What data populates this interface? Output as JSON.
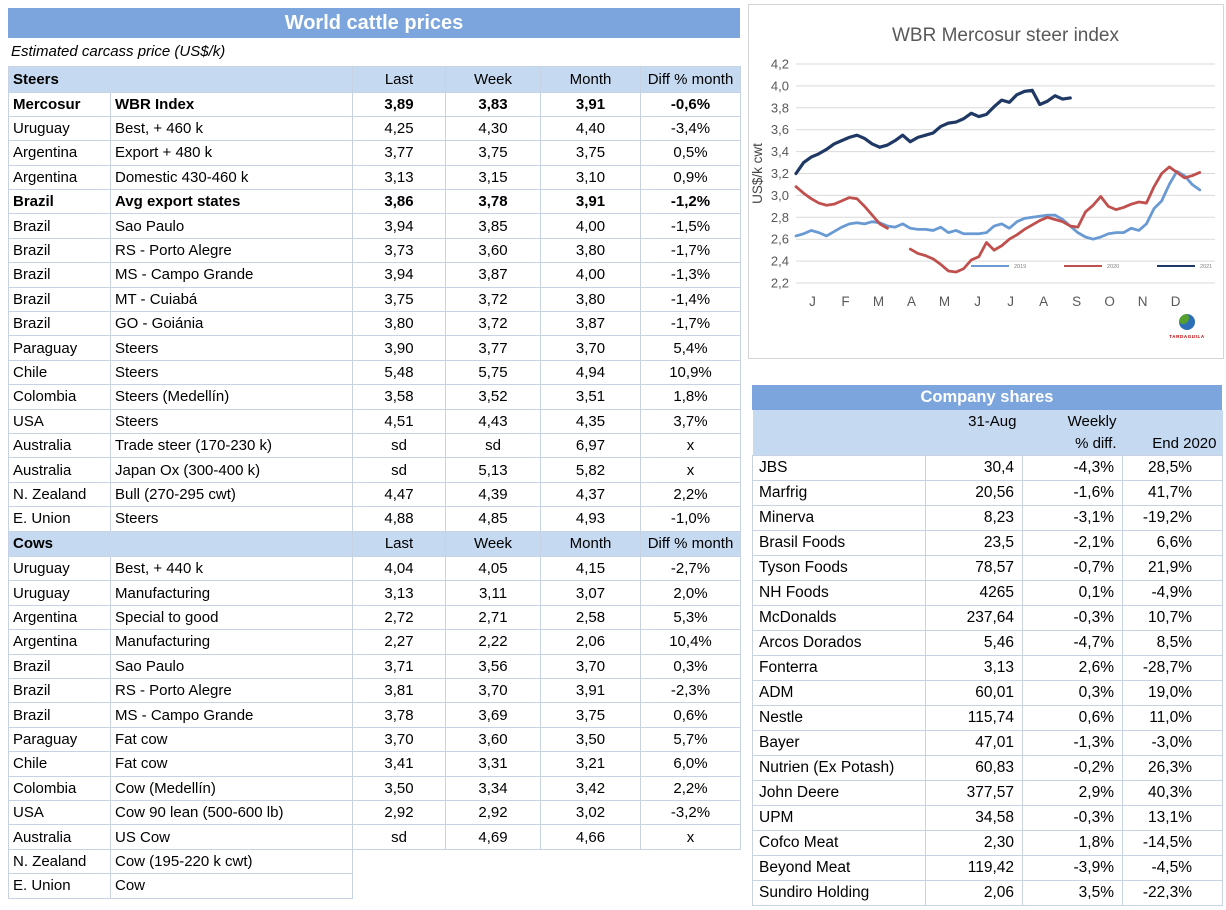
{
  "left_table": {
    "title": "World cattle prices",
    "subtitle": "Estimated carcass price (US$/k)",
    "columns": [
      "Last",
      "Week",
      "Month",
      "Diff % month"
    ],
    "sections": [
      {
        "name": "Steers",
        "rows": [
          {
            "country": "Mercosur",
            "desc": "WBR Index",
            "last": "3,89",
            "week": "3,83",
            "month": "3,91",
            "diff": "-0,6%",
            "bold": true
          },
          {
            "country": "Uruguay",
            "desc": "Best, + 460 k",
            "last": "4,25",
            "week": "4,30",
            "month": "4,40",
            "diff": "-3,4%"
          },
          {
            "country": "Argentina",
            "desc": "Export + 480 k",
            "last": "3,77",
            "week": "3,75",
            "month": "3,75",
            "diff": "0,5%"
          },
          {
            "country": "Argentina",
            "desc": "Domestic 430-460 k",
            "last": "3,13",
            "week": "3,15",
            "month": "3,10",
            "diff": "0,9%"
          },
          {
            "country": "Brazil",
            "desc": "Avg export states",
            "last": "3,86",
            "week": "3,78",
            "month": "3,91",
            "diff": "-1,2%",
            "bold": true
          },
          {
            "country": "Brazil",
            "desc": "Sao Paulo",
            "last": "3,94",
            "week": "3,85",
            "month": "4,00",
            "diff": "-1,5%"
          },
          {
            "country": "Brazil",
            "desc": "RS - Porto Alegre",
            "last": "3,73",
            "week": "3,60",
            "month": "3,80",
            "diff": "-1,7%"
          },
          {
            "country": "Brazil",
            "desc": "MS - Campo Grande",
            "last": "3,94",
            "week": "3,87",
            "month": "4,00",
            "diff": "-1,3%"
          },
          {
            "country": "Brazil",
            "desc": "MT - Cuiabá",
            "last": "3,75",
            "week": "3,72",
            "month": "3,80",
            "diff": "-1,4%"
          },
          {
            "country": "Brazil",
            "desc": "GO - Goiánia",
            "last": "3,80",
            "week": "3,72",
            "month": "3,87",
            "diff": "-1,7%"
          },
          {
            "country": "Paraguay",
            "desc": "Steers",
            "last": "3,90",
            "week": "3,77",
            "month": "3,70",
            "diff": "5,4%"
          },
          {
            "country": "Chile",
            "desc": "Steers",
            "last": "5,48",
            "week": "5,75",
            "month": "4,94",
            "diff": "10,9%"
          },
          {
            "country": "Colombia",
            "desc": "Steers (Medellín)",
            "last": "3,58",
            "week": "3,52",
            "month": "3,51",
            "diff": "1,8%"
          },
          {
            "country": "USA",
            "desc": "Steers",
            "last": "4,51",
            "week": "4,43",
            "month": "4,35",
            "diff": "3,7%"
          },
          {
            "country": "Australia",
            "desc": "Trade steer (170-230 k)",
            "last": "sd",
            "week": "sd",
            "month": "6,97",
            "diff": "x"
          },
          {
            "country": "Australia",
            "desc": "Japan Ox (300-400 k)",
            "last": "sd",
            "week": "5,13",
            "month": "5,82",
            "diff": "x"
          },
          {
            "country": "N. Zealand",
            "desc": "Bull (270-295 cwt)",
            "last": "4,47",
            "week": "4,39",
            "month": "4,37",
            "diff": "2,2%"
          },
          {
            "country": "E. Union",
            "desc": "Steers",
            "last": "4,88",
            "week": "4,85",
            "month": "4,93",
            "diff": "-1,0%"
          }
        ]
      },
      {
        "name": "Cows",
        "rows": [
          {
            "country": "Uruguay",
            "desc": "Best, + 440 k",
            "last": "4,04",
            "week": "4,05",
            "month": "4,15",
            "diff": "-2,7%"
          },
          {
            "country": "Uruguay",
            "desc": "Manufacturing",
            "last": "3,13",
            "week": "3,11",
            "month": "3,07",
            "diff": "2,0%"
          },
          {
            "country": "Argentina",
            "desc": "Special to good",
            "last": "2,72",
            "week": "2,71",
            "month": "2,58",
            "diff": "5,3%"
          },
          {
            "country": "Argentina",
            "desc": "Manufacturing",
            "last": "2,27",
            "week": "2,22",
            "month": "2,06",
            "diff": "10,4%"
          },
          {
            "country": "Brazil",
            "desc": "Sao Paulo",
            "last": "3,71",
            "week": "3,56",
            "month": "3,70",
            "diff": "0,3%"
          },
          {
            "country": "Brazil",
            "desc": "RS - Porto Alegre",
            "last": "3,81",
            "week": "3,70",
            "month": "3,91",
            "diff": "-2,3%"
          },
          {
            "country": "Brazil",
            "desc": "MS - Campo Grande",
            "last": "3,78",
            "week": "3,69",
            "month": "3,75",
            "diff": "0,6%"
          },
          {
            "country": "Paraguay",
            "desc": "Fat cow",
            "last": "3,70",
            "week": "3,60",
            "month": "3,50",
            "diff": "5,7%"
          },
          {
            "country": "Chile",
            "desc": "Fat cow",
            "last": "3,41",
            "week": "3,31",
            "month": "3,21",
            "diff": "6,0%"
          },
          {
            "country": "Colombia",
            "desc": "Cow (Medellín)",
            "last": "3,50",
            "week": "3,34",
            "month": "3,42",
            "diff": "2,2%"
          },
          {
            "country": "USA",
            "desc": "Cow 90 lean (500-600 lb)",
            "last": "2,92",
            "week": "2,92",
            "month": "3,02",
            "diff": "-3,2%"
          },
          {
            "country": "Australia",
            "desc": "US Cow",
            "last": "sd",
            "week": "4,69",
            "month": "4,66",
            "diff": "x"
          },
          {
            "country": "N. Zealand",
            "desc": "Cow (195-220 k cwt)",
            "last": null,
            "week": null,
            "month": null,
            "diff": null
          },
          {
            "country": "E. Union",
            "desc": "Cow",
            "last": null,
            "week": null,
            "month": null,
            "diff": null
          }
        ]
      }
    ]
  },
  "chart_data": {
    "type": "line",
    "title": "WBR Mercosur steer index",
    "ylabel": "US$/k cwt",
    "ylim": [
      2.2,
      4.2
    ],
    "ytick_step": 0.2,
    "ytick_labels": [
      "2,2",
      "2,4",
      "2,6",
      "2,8",
      "3,0",
      "3,2",
      "3,4",
      "3,6",
      "3,8",
      "4,0",
      "4,2"
    ],
    "x_months": [
      "J",
      "F",
      "M",
      "A",
      "M",
      "J",
      "J",
      "A",
      "S",
      "O",
      "N",
      "D"
    ],
    "grid": "horizontal",
    "legend_position": "inside-bottom-right",
    "logo_label": "TARDAGUILA",
    "series": [
      {
        "name": "2019",
        "color": "#6A9AD4",
        "width": 2.8,
        "values": [
          2.63,
          2.65,
          2.68,
          2.66,
          2.63,
          2.67,
          2.71,
          2.74,
          2.75,
          2.74,
          2.76,
          2.75,
          2.72,
          2.71,
          2.74,
          2.7,
          2.69,
          2.69,
          2.68,
          2.71,
          2.66,
          2.68,
          2.65,
          2.65,
          2.65,
          2.66,
          2.72,
          2.74,
          2.7,
          2.76,
          2.79,
          2.8,
          2.81,
          2.82,
          2.82,
          2.78,
          2.72,
          2.66,
          2.62,
          2.6,
          2.62,
          2.65,
          2.66,
          2.66,
          2.7,
          2.68,
          2.74,
          2.88,
          2.95,
          3.1,
          3.22,
          3.18,
          3.1,
          3.05
        ]
      },
      {
        "name": "2020",
        "color": "#C0504D",
        "width": 2.8,
        "values": [
          3.08,
          3.02,
          2.97,
          2.93,
          2.91,
          2.92,
          2.95,
          2.98,
          2.97,
          2.9,
          2.82,
          2.74,
          2.7,
          null,
          null,
          2.51,
          2.47,
          2.45,
          2.42,
          2.37,
          2.31,
          2.3,
          2.33,
          2.41,
          2.44,
          2.57,
          2.5,
          2.54,
          2.6,
          2.64,
          2.69,
          2.73,
          2.77,
          2.8,
          2.78,
          2.76,
          2.72,
          2.71,
          2.85,
          2.91,
          2.99,
          2.9,
          2.87,
          2.89,
          2.92,
          2.94,
          2.93,
          3.08,
          3.2,
          3.26,
          3.21,
          3.16,
          3.18,
          3.21
        ]
      },
      {
        "name": "2021",
        "color": "#1F3864",
        "width": 3.2,
        "values": [
          3.2,
          3.3,
          3.35,
          3.38,
          3.42,
          3.47,
          3.5,
          3.53,
          3.55,
          3.52,
          3.47,
          3.44,
          3.46,
          3.5,
          3.55,
          3.49,
          3.53,
          3.55,
          3.57,
          3.63,
          3.66,
          3.67,
          3.7,
          3.75,
          3.72,
          3.74,
          3.81,
          3.87,
          3.85,
          3.92,
          3.95,
          3.96,
          3.83,
          3.86,
          3.91,
          3.88,
          3.89,
          null,
          null,
          null,
          null,
          null,
          null,
          null,
          null,
          null,
          null,
          null,
          null,
          null,
          null,
          null,
          null,
          null
        ]
      }
    ]
  },
  "company_table": {
    "title": "Company shares",
    "headers": {
      "date": "31-Aug",
      "weekly_line1": "Weekly",
      "weekly_line2": "% diff.",
      "end": "End 2020"
    },
    "rows": [
      {
        "name": "JBS",
        "value": "30,4",
        "weekly": "-4,3%",
        "end2020": "28,5%"
      },
      {
        "name": "Marfrig",
        "value": "20,56",
        "weekly": "-1,6%",
        "end2020": "41,7%"
      },
      {
        "name": "Minerva",
        "value": "8,23",
        "weekly": "-3,1%",
        "end2020": "-19,2%"
      },
      {
        "name": "Brasil Foods",
        "value": "23,5",
        "weekly": "-2,1%",
        "end2020": "6,6%"
      },
      {
        "name": "Tyson Foods",
        "value": "78,57",
        "weekly": "-0,7%",
        "end2020": "21,9%"
      },
      {
        "name": "NH Foods",
        "value": "4265",
        "weekly": "0,1%",
        "end2020": "-4,9%"
      },
      {
        "name": "McDonalds",
        "value": "237,64",
        "weekly": "-0,3%",
        "end2020": "10,7%"
      },
      {
        "name": "Arcos Dorados",
        "value": "5,46",
        "weekly": "-4,7%",
        "end2020": "8,5%"
      },
      {
        "name": "Fonterra",
        "value": "3,13",
        "weekly": "2,6%",
        "end2020": "-28,7%"
      },
      {
        "name": "ADM",
        "value": "60,01",
        "weekly": "0,3%",
        "end2020": "19,0%"
      },
      {
        "name": "Nestle",
        "value": "115,74",
        "weekly": "0,6%",
        "end2020": "11,0%"
      },
      {
        "name": "Bayer",
        "value": "47,01",
        "weekly": "-1,3%",
        "end2020": "-3,0%"
      },
      {
        "name": "Nutrien (Ex Potash)",
        "value": "60,83",
        "weekly": "-0,2%",
        "end2020": "26,3%"
      },
      {
        "name": "John Deere",
        "value": "377,57",
        "weekly": "2,9%",
        "end2020": "40,3%"
      },
      {
        "name": "UPM",
        "value": "34,58",
        "weekly": "-0,3%",
        "end2020": "13,1%"
      },
      {
        "name": "Cofco Meat",
        "value": "2,30",
        "weekly": "1,8%",
        "end2020": "-14,5%"
      },
      {
        "name": "Beyond Meat",
        "value": "119,42",
        "weekly": "-3,9%",
        "end2020": "-4,5%"
      },
      {
        "name": "Sundiro Holding",
        "value": "2,06",
        "weekly": "3,5%",
        "end2020": "-22,3%"
      }
    ]
  },
  "colors": {
    "header_bar": "#7BA5DC",
    "section_band": "#c5d9f1",
    "grid_line": "#d9d9d9",
    "chart_text": "#595959"
  }
}
